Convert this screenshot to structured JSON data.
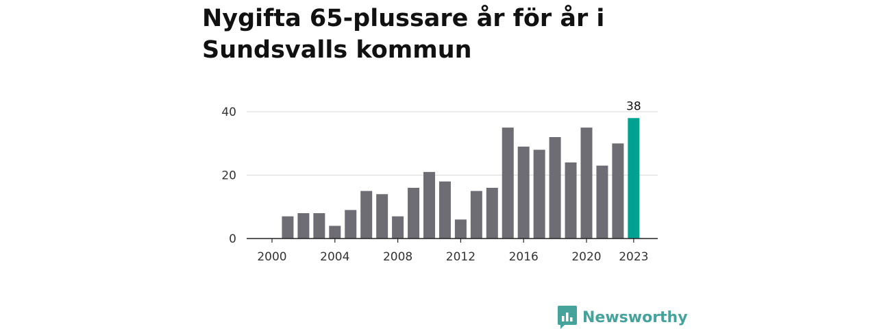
{
  "chart_data": {
    "type": "bar",
    "title": "Nygifta 65-plussare år för år i Sundsvalls kommun",
    "xlabel": "",
    "ylabel": "",
    "x": [
      2000,
      2001,
      2002,
      2003,
      2004,
      2005,
      2006,
      2007,
      2008,
      2009,
      2010,
      2011,
      2012,
      2013,
      2014,
      2015,
      2016,
      2017,
      2018,
      2019,
      2020,
      2021,
      2022,
      2023
    ],
    "values": [
      0,
      7,
      8,
      8,
      4,
      9,
      15,
      14,
      7,
      16,
      21,
      18,
      6,
      15,
      16,
      35,
      29,
      28,
      32,
      24,
      35,
      23,
      30,
      38
    ],
    "x_ticks": [
      "2000",
      "2004",
      "2008",
      "2012",
      "2016",
      "2020",
      "2023"
    ],
    "y_ticks": [
      "0",
      "20",
      "40"
    ],
    "ylim": [
      0,
      40
    ],
    "grid": true,
    "highlight": {
      "x": 2023,
      "label": "38"
    },
    "colors": {
      "bar": "#6e6d73",
      "highlight": "#00a191",
      "grid": "#d9d9d9",
      "axis": "#222222"
    }
  },
  "brand": {
    "name": "Newsworthy",
    "icon": "bar-chart-icon",
    "color": "#45a39b"
  }
}
